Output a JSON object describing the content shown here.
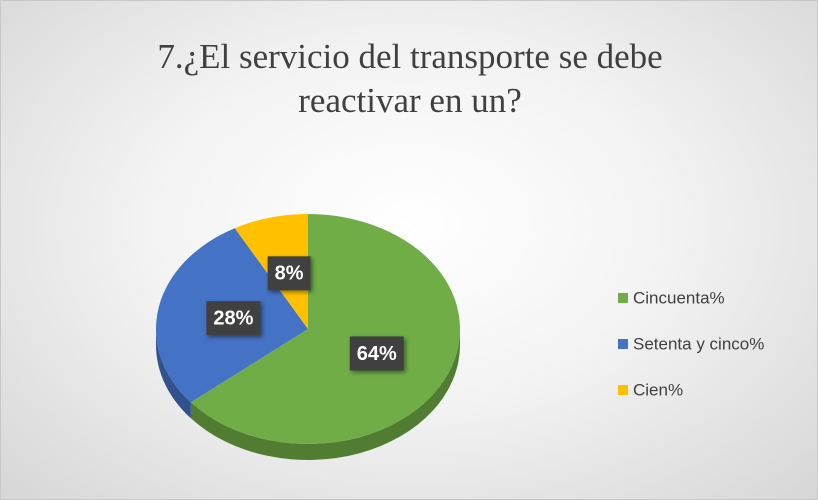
{
  "chart_data": {
    "type": "pie",
    "title": "7.¿El servicio del transporte se debe reactivar en un?",
    "categories": [
      "Cincuenta%",
      "Setenta y cinco%",
      "Cien%"
    ],
    "values": [
      64,
      28,
      8
    ],
    "value_labels": [
      "64%",
      "28%",
      "8%"
    ],
    "colors": [
      "#70ad47",
      "#4472c4",
      "#ffc000"
    ],
    "legend": "right"
  }
}
